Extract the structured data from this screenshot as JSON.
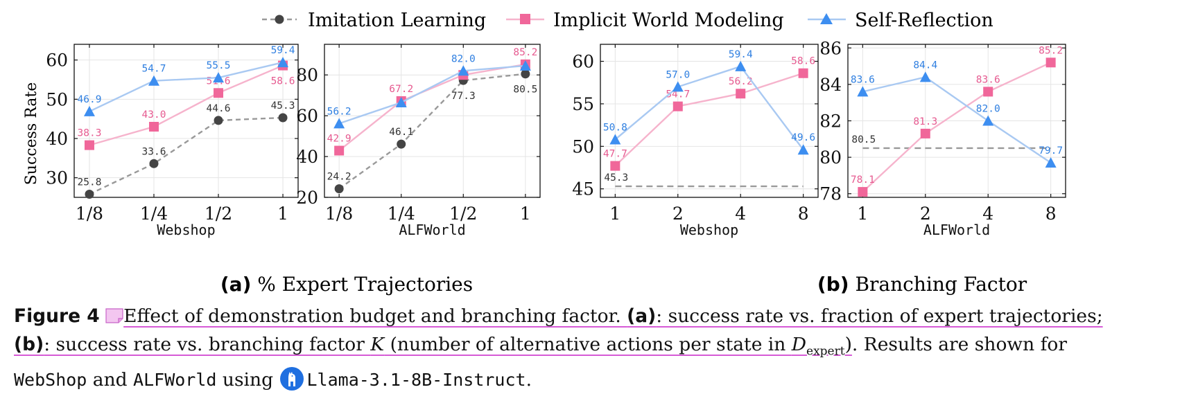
{
  "colors": {
    "imitation": "#444444",
    "implicit": "#f0679a",
    "implicit_line": "#f6b3cc",
    "implicit_label": "#e65a90",
    "self": "#3d8ef0",
    "self_line": "#a9c9f2",
    "self_label": "#2f7fe0",
    "grid": "#e4e4e4",
    "underline": "#d65ad6"
  },
  "legend": [
    "Imitation Learning",
    "Implicit World Modeling",
    "Self-Reflection"
  ],
  "y_axis_label": "Success Rate",
  "subcaptions": [
    {
      "tag": "(a)",
      "text": " % Expert Trajectories"
    },
    {
      "tag": "(b)",
      "text": " Branching Factor"
    }
  ],
  "caption": {
    "figure_label": "Figure 4",
    "p1": "Effect of demonstration budget and branching factor. ",
    "a_label": "(a)",
    "p2": ": success rate vs. fraction of expert trajectories;",
    "b_label": "(b)",
    "p3": ": success rate vs. branching factor ",
    "k": "K",
    "p4": " (number of alternative actions per state in ",
    "d": "D",
    "d_sub": "expert",
    "p5": "). Results are shown for",
    "webshop": "WebShop",
    "and": " and ",
    "alfworld": "ALFWorld",
    "using": " using ",
    "model": "Llama-3.1-8B-Instruct",
    "end": "."
  },
  "chart_data": [
    {
      "type": "line",
      "group": "a",
      "xlabel": "Webshop",
      "ylabel": "Success Rate",
      "categories": [
        "1/8",
        "1/4",
        "1/2",
        "1"
      ],
      "ylim": [
        25,
        64
      ],
      "yticks": [
        30,
        40,
        50,
        60
      ],
      "series": [
        {
          "name": "Imitation Learning",
          "values": [
            25.8,
            33.6,
            44.6,
            45.3
          ],
          "labels": [
            "25.8",
            "33.6",
            "44.6",
            "45.3"
          ],
          "label_pos": [
            "above",
            "above",
            "above",
            "above"
          ]
        },
        {
          "name": "Implicit World Modeling",
          "values": [
            38.3,
            43.0,
            51.6,
            58.6
          ],
          "labels": [
            "38.3",
            "43.0",
            "51.6",
            "58.6"
          ],
          "label_pos": [
            "above",
            "above",
            "above",
            "below"
          ]
        },
        {
          "name": "Self-Reflection",
          "values": [
            46.9,
            54.7,
            55.5,
            59.4
          ],
          "labels": [
            "46.9",
            "54.7",
            "55.5",
            "59.4"
          ],
          "label_pos": [
            "above",
            "above",
            "above",
            "above"
          ]
        }
      ]
    },
    {
      "type": "line",
      "group": "a",
      "xlabel": "ALFWorld",
      "ylabel": "",
      "categories": [
        "1/8",
        "1/4",
        "1/2",
        "1"
      ],
      "ylim": [
        20,
        95
      ],
      "yticks": [
        20,
        40,
        60,
        80
      ],
      "series": [
        {
          "name": "Imitation Learning",
          "values": [
            24.2,
            46.1,
            77.3,
            80.5
          ],
          "labels": [
            "24.2",
            "46.1",
            "77.3",
            "80.5"
          ],
          "label_pos": [
            "above",
            "above",
            "below",
            "below"
          ]
        },
        {
          "name": "Implicit World Modeling",
          "values": [
            42.9,
            67.2,
            80.0,
            85.2
          ],
          "labels": [
            "42.9",
            "67.2",
            "",
            "85.2"
          ],
          "label_pos": [
            "above",
            "above",
            "above",
            "above"
          ]
        },
        {
          "name": "Self-Reflection",
          "values": [
            56.2,
            66.5,
            82.0,
            84.5
          ],
          "labels": [
            "56.2",
            "",
            "82.0",
            ""
          ],
          "label_pos": [
            "above",
            "above",
            "above",
            "above"
          ]
        }
      ]
    },
    {
      "type": "line",
      "group": "b",
      "xlabel": "Webshop",
      "ylabel": "",
      "categories": [
        "1",
        "2",
        "4",
        "8"
      ],
      "ylim": [
        44,
        62
      ],
      "yticks": [
        45,
        50,
        55,
        60
      ],
      "baseline": {
        "name": "Imitation Learning",
        "value": 45.3,
        "label": "45.3"
      },
      "series": [
        {
          "name": "Implicit World Modeling",
          "values": [
            47.7,
            54.7,
            56.2,
            58.6
          ],
          "labels": [
            "47.7",
            "54.7",
            "56.2",
            "58.6"
          ],
          "label_pos": [
            "above",
            "above",
            "above",
            "above"
          ]
        },
        {
          "name": "Self-Reflection",
          "values": [
            50.8,
            57.0,
            59.4,
            49.6
          ],
          "labels": [
            "50.8",
            "57.0",
            "59.4",
            "49.6"
          ],
          "label_pos": [
            "above",
            "above",
            "above",
            "above"
          ]
        }
      ]
    },
    {
      "type": "line",
      "group": "b",
      "xlabel": "ALFWorld",
      "ylabel": "",
      "categories": [
        "1",
        "2",
        "4",
        "8"
      ],
      "ylim": [
        77.8,
        86.2
      ],
      "yticks": [
        78,
        80,
        82,
        84,
        86
      ],
      "baseline": {
        "name": "Imitation Learning",
        "value": 80.5,
        "label": "80.5"
      },
      "series": [
        {
          "name": "Implicit World Modeling",
          "values": [
            78.1,
            81.3,
            83.6,
            85.2
          ],
          "labels": [
            "78.1",
            "81.3",
            "83.6",
            "85.2"
          ],
          "label_pos": [
            "above",
            "above",
            "above",
            "above"
          ]
        },
        {
          "name": "Self-Reflection",
          "values": [
            83.6,
            84.4,
            82.0,
            79.7
          ],
          "labels": [
            "83.6",
            "84.4",
            "82.0",
            "79.7"
          ],
          "label_pos": [
            "above",
            "above",
            "above",
            "above"
          ]
        }
      ]
    }
  ]
}
